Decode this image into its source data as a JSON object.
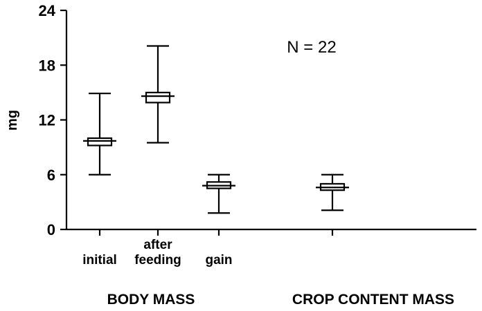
{
  "chart_data": {
    "type": "box",
    "ylabel": "mg",
    "xlabel": "",
    "ylim": [
      0,
      24
    ],
    "yticks": [
      0,
      6,
      12,
      18,
      24
    ],
    "annotation": "N = 22",
    "grid": false,
    "boxes": [
      {
        "category": "initial",
        "whisker_low": 6.0,
        "q1": 9.2,
        "median": 9.7,
        "q3": 10.0,
        "whisker_high": 14.9
      },
      {
        "category": "after feeding",
        "whisker_low": 9.5,
        "q1": 13.9,
        "median": 14.6,
        "q3": 15.0,
        "whisker_high": 20.1
      },
      {
        "category": "gain",
        "whisker_low": 1.8,
        "q1": 4.5,
        "median": 4.8,
        "q3": 5.2,
        "whisker_high": 6.0
      },
      {
        "category": "",
        "whisker_low": 2.1,
        "q1": 4.3,
        "median": 4.6,
        "q3": 5.0,
        "whisker_high": 6.0
      }
    ],
    "category_labels": [
      {
        "lines": [
          "initial"
        ]
      },
      {
        "lines": [
          "after",
          "feeding"
        ]
      },
      {
        "lines": [
          "gain"
        ]
      }
    ],
    "groups": [
      {
        "label": "BODY MASS"
      },
      {
        "label": "CROP CONTENT MASS"
      }
    ]
  }
}
